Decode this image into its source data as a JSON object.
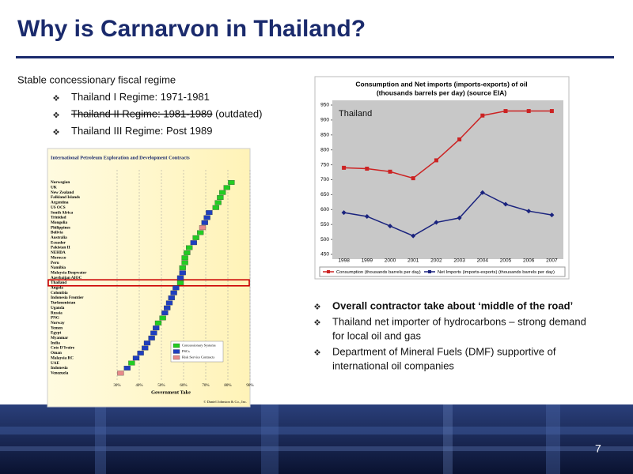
{
  "header": {
    "title": "Why is Carnarvon in Thailand?"
  },
  "intro": "Stable concessionary fiscal regime",
  "bullets_left": [
    {
      "text": "Thailand I Regime: 1971-1981"
    },
    {
      "text": "Thailand II Regime: 1981-1989",
      "note": "(outdated)",
      "strikethrough": true
    },
    {
      "text": "Thailand III Regime: Post 1989"
    }
  ],
  "bullets_right": [
    {
      "lines": [
        "Overall contractor take about ‘middle of the road’"
      ],
      "bold": true
    },
    {
      "lines": [
        "Thailand net importer of hydrocarbons – strong demand",
        "for local oil and gas"
      ]
    },
    {
      "lines": [
        "Department of Mineral Fuels (DMF) supportive of",
        "international oil companies"
      ]
    }
  ],
  "page_number": "7",
  "chart_data": [
    {
      "type": "line",
      "title": [
        "Consumption and Net imports (imports-exports) of oil",
        "(thousands barrels per day) (source EIA)"
      ],
      "annotation": "Thailand",
      "categories": [
        "1998",
        "1999",
        "2000",
        "2001",
        "2002",
        "2003",
        "2004",
        "2005",
        "2006",
        "2007"
      ],
      "series": [
        {
          "name": "Consumption (thousands barrels per day)",
          "color": "#cc2222",
          "marker": "square",
          "values": [
            740,
            737,
            727,
            705,
            765,
            835,
            915,
            930,
            930,
            930
          ]
        },
        {
          "name": "Net Imports (imports-exports)  (thousands barrels per day)",
          "color": "#1a237e",
          "marker": "diamond",
          "values": [
            590,
            577,
            545,
            512,
            557,
            572,
            657,
            618,
            595,
            582
          ]
        }
      ],
      "ylim": [
        450,
        950
      ],
      "yticks": [
        450,
        500,
        550,
        600,
        650,
        700,
        750,
        800,
        850,
        900,
        950
      ],
      "legend": "bottom"
    },
    {
      "type": "bar",
      "title": "International Petroleum Exploration and Development Contracts",
      "xlabel": "Government Take",
      "footer": "© Daniel Johnston & Co., Inc.",
      "categories": [
        "Norwegian",
        "UK",
        "New Zealand",
        "Falkland Islands",
        "Argentina",
        "US OCS",
        "South Africa",
        "Trinidad",
        "Mongolia",
        "Philippines",
        "Bolivia",
        "Australia",
        "Ecuador",
        "Pakistan II",
        "NEHDA",
        "Morocco",
        "Peru",
        "Namibia",
        "Malaysia Deepwater",
        "Azerbaijan AIOC",
        "Thailand",
        "Angola",
        "Colombia",
        "Indonesia Frontier",
        "Turkmenistan",
        "Uganda",
        "Russia",
        "PNG",
        "Norway",
        "Yemen",
        "Egypt",
        "Myanmar",
        "India",
        "Cote D'Ivoire",
        "Oman",
        "Malaysia RC",
        "UAE",
        "Indonesia",
        "Venezuela"
      ],
      "values": [
        83,
        81,
        79,
        78,
        77,
        76,
        73,
        72,
        71,
        70,
        69,
        67,
        66,
        64,
        63,
        62,
        62,
        61,
        61,
        60,
        60,
        58,
        57,
        56,
        55,
        54,
        53,
        52,
        50,
        49,
        48,
        47,
        45,
        44,
        42,
        40,
        38,
        36,
        33
      ],
      "colors": [
        "#22cc22",
        "#22cc22",
        "#22cc22",
        "#22cc22",
        "#22cc22",
        "#22cc22",
        "#1f3fbf",
        "#1f3fbf",
        "#1f3fbf",
        "#e88a8a",
        "#22cc22",
        "#22cc22",
        "#1f3fbf",
        "#22cc22",
        "#22cc22",
        "#22cc22",
        "#22cc22",
        "#22cc22",
        "#1f3fbf",
        "#1f3fbf",
        "#22cc22",
        "#1f3fbf",
        "#1f3fbf",
        "#1f3fbf",
        "#1f3fbf",
        "#1f3fbf",
        "#1f3fbf",
        "#22cc22",
        "#22cc22",
        "#1f3fbf",
        "#1f3fbf",
        "#1f3fbf",
        "#1f3fbf",
        "#1f3fbf",
        "#1f3fbf",
        "#1f3fbf",
        "#22cc22",
        "#1f3fbf",
        "#e88a8a"
      ],
      "highlight": 20,
      "xlim": [
        25,
        90
      ],
      "xticks": [
        {
          "value": 30,
          "label": "30%"
        },
        {
          "value": 40,
          "label": "40%"
        },
        {
          "value": 50,
          "label": "50%"
        },
        {
          "value": 60,
          "label": "60%"
        },
        {
          "value": 70,
          "label": "70%"
        },
        {
          "value": 80,
          "label": "80%"
        },
        {
          "value": 90,
          "label": "90%"
        }
      ],
      "legend_items": [
        {
          "name": "Concessionary Systems",
          "color": "#22cc22"
        },
        {
          "name": "PSCs",
          "color": "#1f3fbf"
        },
        {
          "name": "Risk Service Contracts",
          "color": "#e88a8a"
        }
      ]
    }
  ]
}
